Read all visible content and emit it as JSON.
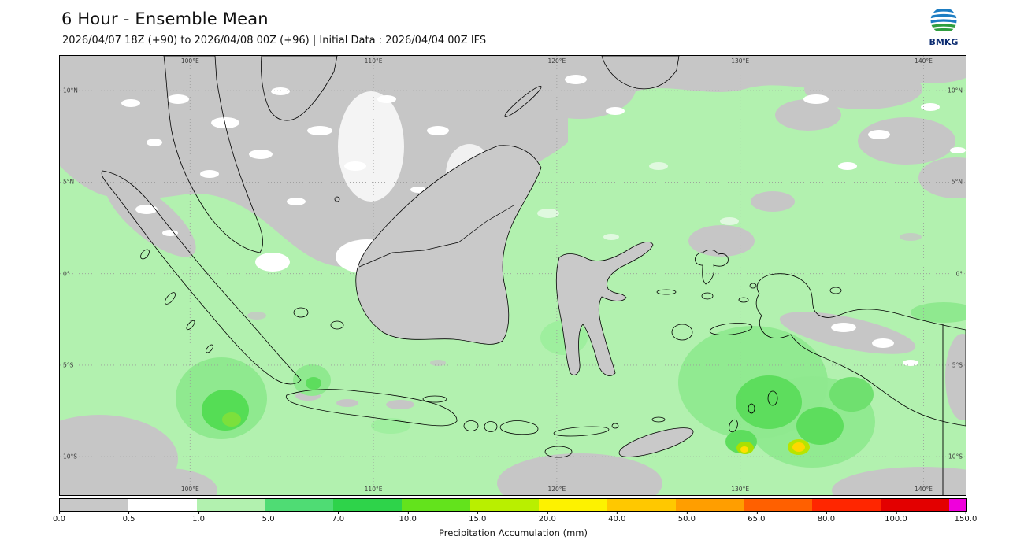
{
  "header": {
    "title": "6 Hour - Ensemble Mean",
    "subtitle": "2026/04/07 18Z (+90) to 2026/04/08 00Z (+96) | Initial Data : 2026/04/04 00Z IFS",
    "logo_text": "BMKG"
  },
  "chart_data": {
    "type": "heatmap",
    "title": "6 Hour - Ensemble Mean",
    "subtitle": "2026/04/07 18Z (+90) to 2026/04/08 00Z (+96) | Initial Data : 2026/04/04 00Z IFS",
    "grid_on": true,
    "extent": {
      "lon_min": 92.9,
      "lon_max": 142.3,
      "lat_min": -12.1,
      "lat_max": 11.9
    },
    "grid": {
      "lon_values": [
        100,
        110,
        120,
        130,
        140
      ],
      "lon_labels": [
        "100°E",
        "110°E",
        "120°E",
        "130°E",
        "140°E"
      ],
      "lat_values": [
        10,
        5,
        0,
        -5,
        -10
      ],
      "lat_labels": [
        "10°N",
        "5°N",
        "0°",
        "5°S",
        "10°S"
      ]
    },
    "colorbar": {
      "label": "Precipitation Accumulation (mm)",
      "units": "mm",
      "tick_labels": [
        "0.0",
        "0.5",
        "1.0",
        "5.0",
        "7.0",
        "10.0",
        "15.0",
        "20.0",
        "40.0",
        "50.0",
        "65.0",
        "80.0",
        "100.0",
        "150.0"
      ],
      "levels": [
        0.0,
        0.5,
        1.0,
        5.0,
        7.0,
        10.0,
        15.0,
        20.0,
        40.0,
        50.0,
        65.0,
        80.0,
        100.0,
        150.0
      ],
      "colors": [
        "#c8c8c8",
        "#ffffff",
        "#b2f1af",
        "#4fdc74",
        "#2ed34a",
        "#63e31c",
        "#b9ef00",
        "#fdf200",
        "#ffc800",
        "#ff9e00",
        "#ff6000",
        "#ff2600",
        "#e30000"
      ],
      "extend_color": "#ef00dc",
      "legend_position": "bottom"
    }
  }
}
